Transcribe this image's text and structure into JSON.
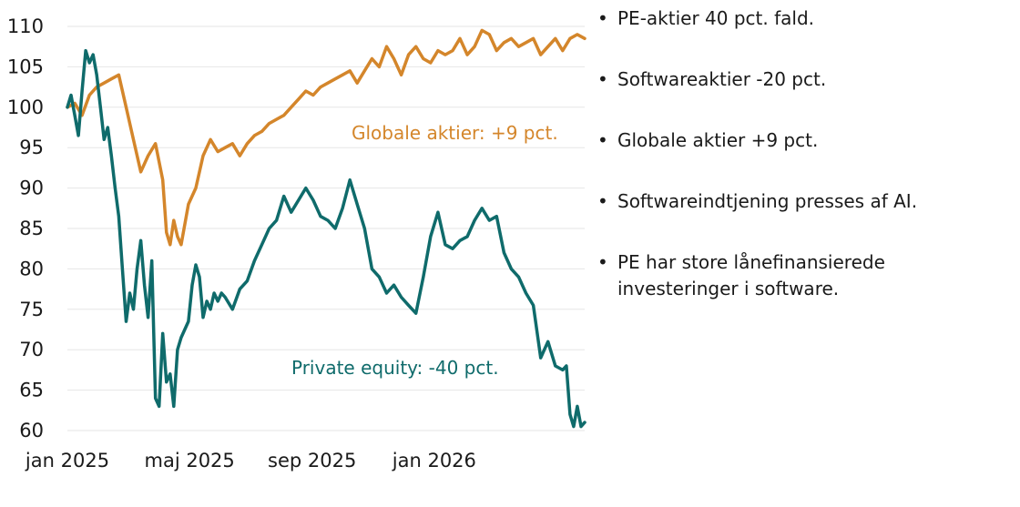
{
  "chart_data": {
    "type": "line",
    "xlabel": "",
    "ylabel": "",
    "ylim": [
      60,
      110
    ],
    "yticks": [
      60,
      65,
      70,
      75,
      80,
      85,
      90,
      95,
      100,
      105,
      110
    ],
    "xlim": [
      2025.0,
      2026.41
    ],
    "xticks": [
      {
        "x": 2025.0,
        "label": "jan 2025"
      },
      {
        "x": 2025.333,
        "label": "maj 2025"
      },
      {
        "x": 2025.667,
        "label": "sep 2025"
      },
      {
        "x": 2026.0,
        "label": "jan 2026"
      }
    ],
    "grid": true,
    "series": [
      {
        "name": "Globale aktier",
        "label": "Globale aktier: +9 pct.",
        "color": "#d4862b",
        "x": [
          2025.0,
          2025.02,
          2025.04,
          2025.06,
          2025.08,
          2025.1,
          2025.12,
          2025.14,
          2025.16,
          2025.18,
          2025.2,
          2025.22,
          2025.24,
          2025.26,
          2025.27,
          2025.28,
          2025.29,
          2025.3,
          2025.31,
          2025.33,
          2025.35,
          2025.37,
          2025.39,
          2025.41,
          2025.43,
          2025.45,
          2025.47,
          2025.49,
          2025.51,
          2025.53,
          2025.55,
          2025.57,
          2025.59,
          2025.61,
          2025.63,
          2025.65,
          2025.67,
          2025.69,
          2025.71,
          2025.73,
          2025.75,
          2025.77,
          2025.79,
          2025.81,
          2025.83,
          2025.85,
          2025.87,
          2025.89,
          2025.91,
          2025.93,
          2025.95,
          2025.97,
          2025.99,
          2026.01,
          2026.03,
          2026.05,
          2026.07,
          2026.09,
          2026.11,
          2026.13,
          2026.15,
          2026.17,
          2026.19,
          2026.21,
          2026.23,
          2026.25,
          2026.27,
          2026.29,
          2026.31,
          2026.33,
          2026.35,
          2026.37,
          2026.39,
          2026.41
        ],
        "values": [
          100,
          100.5,
          99,
          101.5,
          102.5,
          103,
          103.5,
          104,
          100,
          96,
          92,
          94,
          95.5,
          91,
          84.5,
          83,
          86,
          84,
          83,
          88,
          90,
          94,
          96,
          94.5,
          95,
          95.5,
          94,
          95.5,
          96.5,
          97,
          98,
          98.5,
          99,
          100,
          101,
          102,
          101.5,
          102.5,
          103,
          103.5,
          104,
          104.5,
          103,
          104.5,
          106,
          105,
          107.5,
          106,
          104,
          106.5,
          107.5,
          106,
          105.5,
          107,
          106.5,
          107,
          108.5,
          106.5,
          107.5,
          109.5,
          109,
          107,
          108,
          108.5,
          107.5,
          108,
          108.5,
          106.5,
          107.5,
          108.5,
          107,
          108.5,
          109,
          108.5
        ]
      },
      {
        "name": "Private equity",
        "label": "Private equity: -40 pct.",
        "color": "#0f6b6b",
        "x": [
          2025.0,
          2025.01,
          2025.02,
          2025.03,
          2025.04,
          2025.05,
          2025.06,
          2025.07,
          2025.08,
          2025.09,
          2025.1,
          2025.11,
          2025.12,
          2025.13,
          2025.14,
          2025.15,
          2025.16,
          2025.17,
          2025.18,
          2025.19,
          2025.2,
          2025.21,
          2025.22,
          2025.23,
          2025.24,
          2025.25,
          2025.26,
          2025.27,
          2025.28,
          2025.29,
          2025.3,
          2025.31,
          2025.32,
          2025.33,
          2025.34,
          2025.35,
          2025.36,
          2025.37,
          2025.38,
          2025.39,
          2025.4,
          2025.41,
          2025.42,
          2025.43,
          2025.45,
          2025.47,
          2025.49,
          2025.51,
          2025.53,
          2025.55,
          2025.57,
          2025.59,
          2025.61,
          2025.63,
          2025.65,
          2025.67,
          2025.69,
          2025.71,
          2025.73,
          2025.75,
          2025.77,
          2025.79,
          2025.81,
          2025.83,
          2025.85,
          2025.87,
          2025.89,
          2025.91,
          2025.93,
          2025.95,
          2025.97,
          2025.99,
          2026.01,
          2026.03,
          2026.05,
          2026.07,
          2026.09,
          2026.11,
          2026.13,
          2026.15,
          2026.17,
          2026.19,
          2026.21,
          2026.23,
          2026.25,
          2026.27,
          2026.29,
          2026.31,
          2026.33,
          2026.35,
          2026.36,
          2026.37,
          2026.38,
          2026.39,
          2026.4,
          2026.41
        ],
        "values": [
          100,
          101.5,
          99,
          96.5,
          102,
          107,
          105.5,
          106.5,
          104,
          100,
          96,
          97.5,
          94,
          90,
          86.5,
          80,
          73.5,
          77,
          75,
          80,
          83.5,
          78,
          74,
          81,
          64,
          63,
          72,
          66,
          67,
          63,
          70,
          71.5,
          72.5,
          73.5,
          78,
          80.5,
          79,
          74,
          76,
          75,
          77,
          76,
          77,
          76.5,
          75,
          77.5,
          78.5,
          81,
          83,
          85,
          86,
          89,
          87,
          88.5,
          90,
          88.5,
          86.5,
          86,
          85,
          87.5,
          91,
          88,
          85,
          80,
          79,
          77,
          78,
          76.5,
          75.5,
          74.5,
          79,
          84,
          87,
          83,
          82.5,
          83.5,
          84,
          86,
          87.5,
          86,
          86.5,
          82,
          80,
          79,
          77,
          75.5,
          69,
          71,
          68,
          67.5,
          68,
          62,
          60.5,
          63,
          60.5,
          61
        ]
      }
    ]
  },
  "bullets": [
    "PE-aktier 40 pct. fald.",
    "Softwareaktier -20 pct.",
    "Globale aktier +9 pct.",
    "Softwareindtjening presses af AI.",
    "PE har store lånefinansierede investeringer i software."
  ],
  "bullet_marker": "•"
}
